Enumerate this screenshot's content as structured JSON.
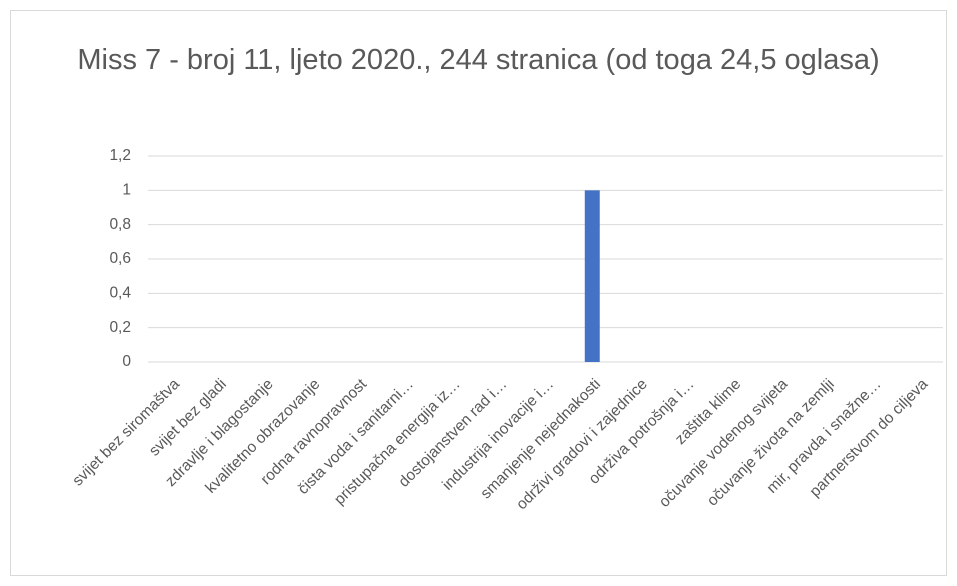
{
  "chart_data": {
    "type": "bar",
    "title": "Miss 7 - broj 11, ljeto 2020., 244 stranica (od toga 24,5 oglasa)",
    "categories": [
      "svijet bez siromaštva",
      "svijet bez gladi",
      "zdravlje i blagostanje",
      "kvalitetno obrazovanje",
      "rodna ravnopravnost",
      "čista voda i sanitarni…",
      "pristupačna energija iz…",
      "dostojanstven rad i…",
      "industrija inovacije i…",
      "smanjenje nejednakosti",
      "održivi gradovi i zajednice",
      "održiva potrošnja i…",
      "zaštita klime",
      "očuvanje vodenog svijeta",
      "očuvanje života na zemlji",
      "mir, pravda i snažne…",
      "partnerstvom do ciljeva"
    ],
    "values": [
      0,
      0,
      0,
      0,
      0,
      0,
      0,
      0,
      0,
      1,
      0,
      0,
      0,
      0,
      0,
      0,
      0
    ],
    "color": "#4472c4",
    "ylim": [
      0,
      1.2
    ],
    "yticks": [
      0,
      {
        "value": 0.2,
        "label": "0,2"
      },
      {
        "value": 0.4,
        "label": "0,4"
      },
      {
        "value": 0.6,
        "label": "0,6"
      },
      {
        "value": 0.8,
        "label": "0,8"
      },
      1,
      {
        "value": 1.2,
        "label": "1,2"
      }
    ],
    "grid": true
  }
}
